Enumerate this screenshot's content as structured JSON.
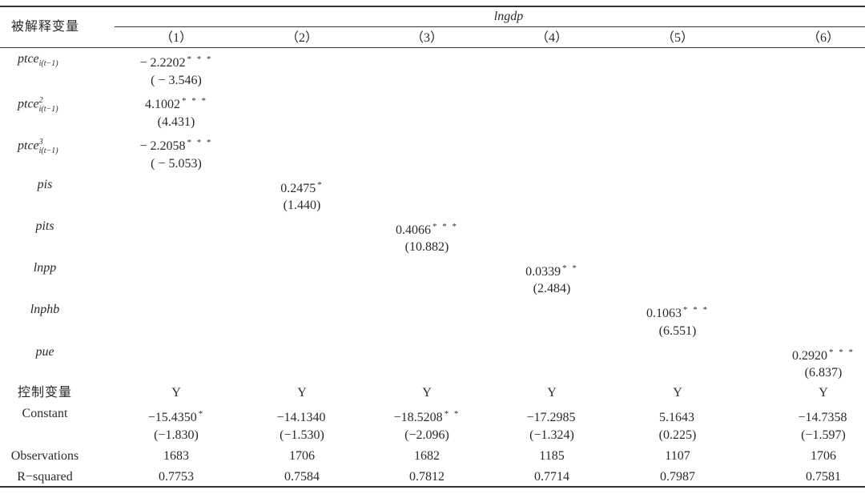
{
  "header": {
    "dep_label": "被解释变量",
    "dep_var": "lngdp",
    "columns": [
      "（1）",
      "（2）",
      "（3）",
      "（4）",
      "（5）",
      "（6）"
    ]
  },
  "rows": {
    "ptce1": {
      "label": "ptce",
      "sub": "i(t−1)",
      "sup": "",
      "coef": "− 2.2202",
      "stars": "* * *",
      "t": "( − 3.546)"
    },
    "ptce2": {
      "label": "ptce",
      "sub": "i(t−1)",
      "sup": "2",
      "coef": "4.1002",
      "stars": "* * *",
      "t": "(4.431)"
    },
    "ptce3": {
      "label": "ptce",
      "sub": "i(t−1)",
      "sup": "3",
      "coef": "− 2.2058",
      "stars": "* * *",
      "t": "( − 5.053)"
    },
    "pis": {
      "label": "pis",
      "coef": "0.2475",
      "stars": "*",
      "t": "(1.440)"
    },
    "pits": {
      "label": "pits",
      "coef": "0.4066",
      "stars": "* * *",
      "t": "(10.882)"
    },
    "lnpp": {
      "label": "lnpp",
      "coef": "0.0339",
      "stars": "* *",
      "t": "(2.484)"
    },
    "lnphb": {
      "label": "lnphb",
      "coef": "0.1063",
      "stars": "* * *",
      "t": "(6.551)"
    },
    "pue": {
      "label": "pue",
      "coef": "0.2920",
      "stars": "* * *",
      "t": "(6.837)"
    }
  },
  "controls": {
    "label": "控制变量",
    "values": [
      "Y",
      "Y",
      "Y",
      "Y",
      "Y",
      "Y"
    ]
  },
  "constant": {
    "label": "Constant",
    "coefs": [
      "−15.4350",
      "−14.1340",
      "−18.5208",
      "−17.2985",
      "5.1643",
      "−14.7358"
    ],
    "stars": [
      "*",
      "",
      "* *",
      "",
      "",
      ""
    ],
    "t": [
      "(−1.830)",
      "(−1.530)",
      "(−2.096)",
      "(−1.324)",
      "(0.225)",
      "(−1.597)"
    ]
  },
  "observations": {
    "label": "Observations",
    "values": [
      "1683",
      "1706",
      "1682",
      "1185",
      "1107",
      "1706"
    ]
  },
  "rsquared": {
    "label": "R−squared",
    "values": [
      "0.7753",
      "0.7584",
      "0.7812",
      "0.7714",
      "0.7987",
      "0.7581"
    ]
  }
}
